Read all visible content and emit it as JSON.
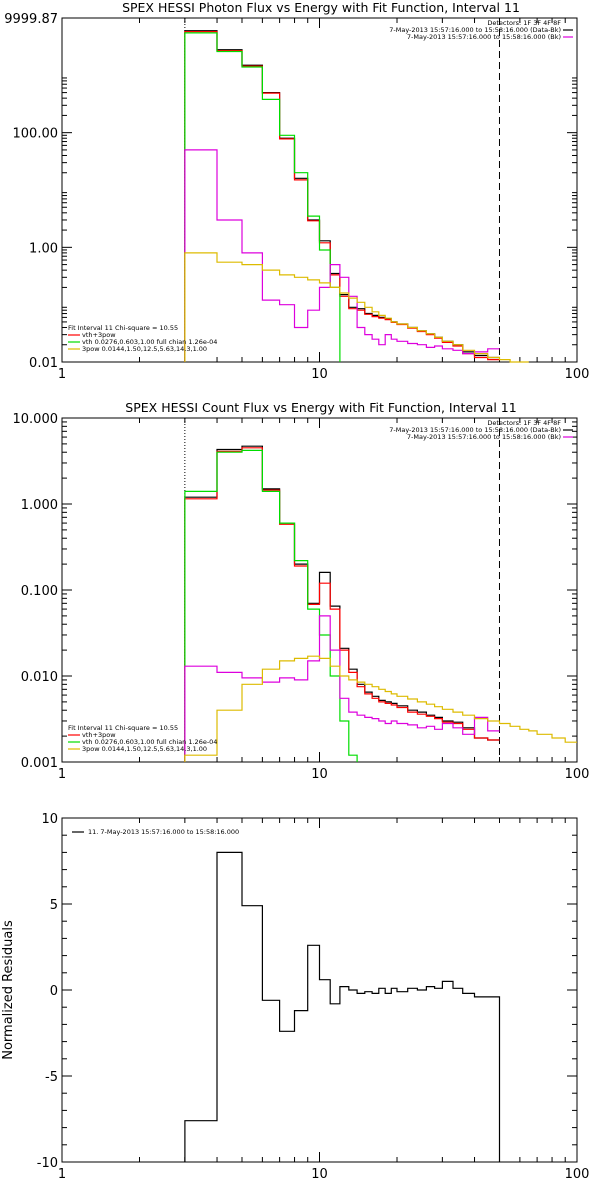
{
  "chart_data": [
    {
      "type": "line",
      "title": "SPEX HESSI Photon Flux vs Energy with Fit Function, Interval 11",
      "xlabel": "",
      "ylabel": "",
      "xscale": "log",
      "yscale": "log",
      "xlim": [
        1,
        100
      ],
      "ylim": [
        0.01,
        9999.87
      ],
      "x_ticks": [
        "1",
        "10",
        "100"
      ],
      "y_ticks": [
        "0.01",
        "1.00",
        "100.00",
        "9999.87"
      ],
      "vlines": [
        {
          "x": 3,
          "style": "dotted"
        },
        {
          "x": 50,
          "style": "dashed"
        }
      ],
      "header_text": [
        "Detectors: 1F 3F 4F 8F",
        "7-May-2013 15:57:16.000 to 15:58:16.000 (Data-Bk)",
        "7-May-2013 15:57:16.000 to 15:58:16.000 (Bk)"
      ],
      "fit_text": [
        "Fit Interval 11   Chi-square = 10.55",
        "vth+3pow",
        "vth 0.0276,0.603,1.00  full chian 1.26e-04",
        "3pow 0.0144,1.50,12.5,5.63,14.3,1.00"
      ],
      "bin_edges": [
        3,
        4,
        5,
        6,
        7,
        8,
        9,
        10,
        11,
        12,
        13,
        14,
        15,
        16,
        17,
        18,
        19,
        20,
        22,
        24,
        26,
        28,
        30,
        33,
        36,
        40,
        45,
        50,
        55,
        60,
        65
      ],
      "series": [
        {
          "color": "#000000",
          "values": [
            6000,
            2800,
            1500,
            500,
            80,
            16,
            3,
            1.3,
            0.35,
            0.15,
            0.09,
            0.085,
            0.07,
            0.065,
            0.06,
            0.057,
            0.05,
            0.046,
            0.04,
            0.035,
            0.031,
            0.027,
            0.023,
            0.02,
            0.015,
            0.013,
            0.012
          ]
        },
        {
          "color": "#ff0000",
          "values": [
            5800,
            2700,
            1450,
            490,
            78,
            15,
            2.9,
            1.2,
            0.33,
            0.14,
            0.085,
            0.08,
            0.068,
            0.062,
            0.058,
            0.055,
            0.049,
            0.045,
            0.039,
            0.034,
            0.03,
            0.026,
            0.022,
            0.019,
            0.014,
            0.012,
            0.011
          ]
        },
        {
          "color": "#00dd00",
          "values": [
            5500,
            2600,
            1400,
            380,
            90,
            20,
            3.5,
            0.9,
            0.2
          ]
        },
        {
          "color": "#dd00dd",
          "values": [
            50,
            3,
            0.8,
            0.12,
            0.1,
            0.04,
            0.08,
            0.2,
            0.5,
            0.3,
            0.14,
            0.04,
            0.03,
            0.025,
            0.02,
            0.03,
            0.025,
            0.023,
            0.021,
            0.02,
            0.018,
            0.019,
            0.017,
            0.016,
            0.014,
            0.015,
            0.017
          ]
        },
        {
          "color": "#ddbb00",
          "values": [
            0.8,
            0.55,
            0.5,
            0.4,
            0.33,
            0.3,
            0.27,
            0.24,
            0.2,
            0.16,
            0.13,
            0.11,
            0.09,
            0.075,
            0.065,
            0.058,
            0.05,
            0.046,
            0.04,
            0.035,
            0.031,
            0.027,
            0.023,
            0.02,
            0.016,
            0.014,
            0.012,
            0.011,
            0.01,
            0.0095
          ]
        }
      ]
    },
    {
      "type": "line",
      "title": "SPEX HESSI Count Flux vs Energy with Fit Function, Interval 11",
      "xlabel": "",
      "ylabel": "",
      "xscale": "log",
      "yscale": "log",
      "xlim": [
        1,
        100
      ],
      "ylim": [
        0.001,
        10.0
      ],
      "x_ticks": [
        "1",
        "10",
        "100"
      ],
      "y_ticks": [
        "0.001",
        "0.010",
        "0.100",
        "1.000",
        "10.000"
      ],
      "vlines": [
        {
          "x": 3,
          "style": "dotted"
        },
        {
          "x": 50,
          "style": "dashed"
        }
      ],
      "header_text": [
        "Detectors: 1F 3F 4F 8F",
        "7-May-2013 15:57:16.000 to 15:58:16.000 (Data-Bk)",
        "7-May-2013 15:57:16.000 to 15:58:16.000 (Bk)"
      ],
      "fit_text": [
        "Fit Interval 11   Chi-square = 10.55",
        "vth+3pow",
        "vth 0.0276,0.603,1.00  full chian 1.26e-04",
        "3pow 0.0144,1.50,12.5,5.63,14.3,1.00"
      ],
      "bin_edges": [
        3,
        4,
        5,
        6,
        7,
        8,
        9,
        10,
        11,
        12,
        13,
        14,
        15,
        16,
        17,
        18,
        19,
        20,
        22,
        24,
        26,
        28,
        30,
        33,
        36,
        40,
        45,
        50,
        55,
        60,
        65,
        70,
        80,
        90,
        100
      ],
      "series": [
        {
          "color": "#000000",
          "values": [
            1.2,
            4.3,
            4.7,
            1.5,
            0.6,
            0.2,
            0.07,
            0.16,
            0.065,
            0.021,
            0.012,
            0.008,
            0.0065,
            0.0058,
            0.0052,
            0.005,
            0.0048,
            0.0045,
            0.004,
            0.0038,
            0.0035,
            0.0033,
            0.003,
            0.0029,
            0.0025,
            0.0019,
            0.0018
          ]
        },
        {
          "color": "#ff0000",
          "values": [
            1.15,
            4.1,
            4.5,
            1.45,
            0.58,
            0.19,
            0.068,
            0.12,
            0.06,
            0.02,
            0.011,
            0.0075,
            0.0062,
            0.0055,
            0.005,
            0.0048,
            0.0046,
            0.0043,
            0.0038,
            0.0036,
            0.0034,
            0.0032,
            0.0029,
            0.0028,
            0.0024,
            0.0019,
            0.0018
          ]
        },
        {
          "color": "#00dd00",
          "values": [
            1.4,
            4.0,
            4.2,
            1.4,
            0.6,
            0.22,
            0.06,
            0.03,
            0.01,
            0.003,
            0.0012
          ]
        },
        {
          "color": "#dd00dd",
          "values": [
            0.013,
            0.011,
            0.0095,
            0.0085,
            0.0095,
            0.009,
            0.015,
            0.05,
            0.02,
            0.0055,
            0.0038,
            0.0035,
            0.0033,
            0.0032,
            0.003,
            0.0028,
            0.003,
            0.0028,
            0.0027,
            0.0025,
            0.0026,
            0.0024,
            0.0028,
            0.0025,
            0.0021,
            0.0033,
            0.0023
          ]
        },
        {
          "color": "#ddbb00",
          "values": [
            0.0012,
            0.004,
            0.008,
            0.012,
            0.015,
            0.016,
            0.017,
            0.016,
            0.013,
            0.01,
            0.009,
            0.0085,
            0.008,
            0.0075,
            0.007,
            0.0066,
            0.0062,
            0.0058,
            0.0054,
            0.005,
            0.0047,
            0.0044,
            0.0041,
            0.0038,
            0.0035,
            0.0032,
            0.003,
            0.0028,
            0.0026,
            0.0024,
            0.0023,
            0.0021,
            0.0019,
            0.0017
          ]
        }
      ]
    },
    {
      "type": "line",
      "title": "",
      "xlabel": "",
      "ylabel": "Normalized Residuals",
      "xscale": "log",
      "yscale": "linear",
      "xlim": [
        1,
        100
      ],
      "ylim": [
        -10,
        10
      ],
      "x_ticks": [
        "1",
        "10",
        "100"
      ],
      "y_ticks": [
        "10",
        "5",
        "0",
        "-5",
        "-10"
      ],
      "legend": "11.  7-May-2013 15:57:16.000 to 15:58:16.000",
      "bin_edges": [
        3,
        4,
        5,
        6,
        7,
        8,
        9,
        10,
        11,
        12,
        13,
        14,
        15,
        16,
        17,
        18,
        19,
        20,
        22,
        24,
        26,
        28,
        30,
        33,
        36,
        40,
        45,
        50
      ],
      "series": [
        {
          "color": "#000000",
          "values": [
            -7.6,
            8.0,
            4.9,
            -0.6,
            -2.4,
            -1.2,
            2.6,
            0.6,
            -0.8,
            0.2,
            0.0,
            -0.2,
            -0.1,
            -0.2,
            0.1,
            -0.2,
            0.1,
            -0.1,
            0.1,
            0.0,
            0.2,
            0.1,
            0.5,
            0.1,
            -0.2,
            -0.4,
            -0.4
          ]
        }
      ]
    }
  ]
}
